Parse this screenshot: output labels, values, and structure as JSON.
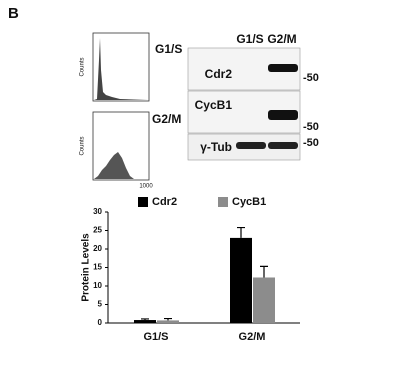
{
  "panel_label": "B",
  "flow": {
    "y_label": "Counts",
    "x_tick": "1000",
    "panels": [
      {
        "label": "G1/S"
      },
      {
        "label": "G2/M"
      }
    ]
  },
  "blot": {
    "columns": [
      "G1/S",
      "G2/M"
    ],
    "rows": [
      {
        "label": "Cdr2",
        "marker": "-50"
      },
      {
        "label": "CycB1",
        "marker": "-50"
      },
      {
        "label": "γ-Tub",
        "marker": "-50"
      }
    ]
  },
  "chart_data": {
    "type": "bar",
    "y_label": "Protein Levels",
    "categories": [
      "G1/S",
      "G2/M"
    ],
    "series": [
      {
        "name": "Cdr2",
        "color": "#000000",
        "values": [
          0.8,
          23
        ],
        "errors": [
          0.3,
          2.8
        ]
      },
      {
        "name": "CycB1",
        "color": "#8c8c8c",
        "values": [
          0.7,
          12.3
        ],
        "errors": [
          0.5,
          3
        ]
      }
    ],
    "ylim": [
      0,
      30
    ],
    "yticks": [
      0,
      5,
      10,
      15,
      20,
      25,
      30
    ]
  }
}
